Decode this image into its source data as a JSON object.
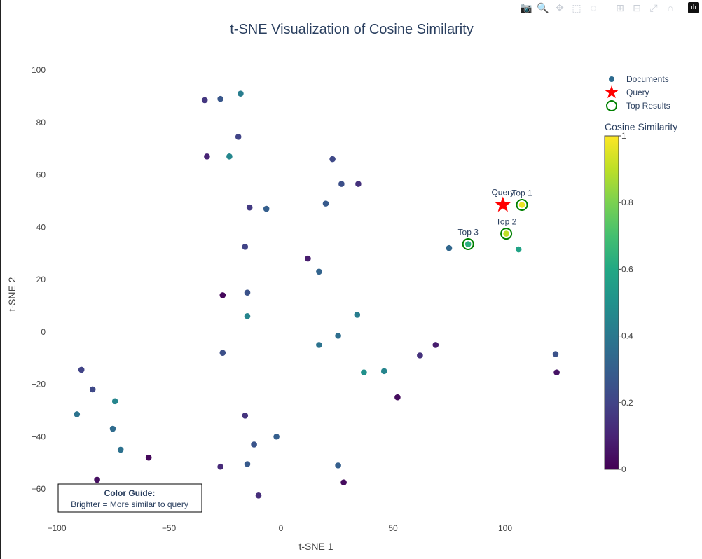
{
  "modebar": {
    "buttons": [
      {
        "name": "camera-icon",
        "glyph": "📷",
        "active": false
      },
      {
        "name": "zoom-icon",
        "glyph": "🔍",
        "active": true
      },
      {
        "name": "pan-icon",
        "glyph": "✥",
        "active": false
      },
      {
        "name": "box-select-icon",
        "glyph": "⬚",
        "active": false
      },
      {
        "name": "lasso-select-icon",
        "glyph": "◌",
        "active": false
      },
      {
        "name": "zoom-in-icon",
        "glyph": "⊞",
        "active": false
      },
      {
        "name": "zoom-out-icon",
        "glyph": "⊟",
        "active": false
      },
      {
        "name": "autoscale-icon",
        "glyph": "⤢",
        "active": false
      },
      {
        "name": "reset-axes-icon",
        "glyph": "⌂",
        "active": false
      }
    ]
  },
  "chart_data": {
    "type": "scatter",
    "title": "t-SNE Visualization of Cosine Similarity",
    "xlabel": "t-SNE 1",
    "ylabel": "t-SNE 2",
    "xlim": [
      -100,
      125
    ],
    "ylim": [
      -68,
      105
    ],
    "xticks": [
      -100,
      -50,
      0,
      50,
      100
    ],
    "xtick_labels": [
      "−100",
      "−50",
      "0",
      "50",
      "100"
    ],
    "yticks": [
      -60,
      -40,
      -20,
      0,
      20,
      40,
      60,
      80,
      100
    ],
    "ytick_labels": [
      "−60",
      "−40",
      "−20",
      "0",
      "20",
      "40",
      "60",
      "80",
      "100"
    ],
    "grid": false,
    "colorscale": "Viridis",
    "colorbar": {
      "title": "Cosine Similarity",
      "range": [
        0,
        1
      ],
      "ticks": [
        0,
        0.2,
        0.4,
        0.6,
        0.8,
        1
      ],
      "tick_labels": [
        "0",
        "0.2",
        "0.4",
        "0.6",
        "0.8",
        "1"
      ]
    },
    "legend": {
      "placement": "top-right",
      "entries": [
        "Documents",
        "Query",
        "Top Results"
      ]
    },
    "series": [
      {
        "name": "Documents",
        "marker": "circle",
        "points": [
          {
            "x": -34,
            "y": 88.5,
            "s": 0.16
          },
          {
            "x": -27,
            "y": 89,
            "s": 0.27
          },
          {
            "x": -18,
            "y": 91,
            "s": 0.42
          },
          {
            "x": -19,
            "y": 74.5,
            "s": 0.2
          },
          {
            "x": -33,
            "y": 67,
            "s": 0.1
          },
          {
            "x": -23,
            "y": 67,
            "s": 0.46
          },
          {
            "x": 23,
            "y": 66,
            "s": 0.22
          },
          {
            "x": 27,
            "y": 56.5,
            "s": 0.24
          },
          {
            "x": 34.5,
            "y": 56.5,
            "s": 0.14
          },
          {
            "x": -14,
            "y": 47.5,
            "s": 0.17
          },
          {
            "x": -6.5,
            "y": 47,
            "s": 0.3
          },
          {
            "x": 20,
            "y": 49,
            "s": 0.28
          },
          {
            "x": -16,
            "y": 32.5,
            "s": 0.2
          },
          {
            "x": 12,
            "y": 28,
            "s": 0.08
          },
          {
            "x": 17,
            "y": 23,
            "s": 0.32
          },
          {
            "x": -15,
            "y": 15,
            "s": 0.25
          },
          {
            "x": -26,
            "y": 14,
            "s": 0.02
          },
          {
            "x": -15,
            "y": 6,
            "s": 0.45
          },
          {
            "x": 34,
            "y": 6.5,
            "s": 0.42
          },
          {
            "x": 17,
            "y": -5,
            "s": 0.38
          },
          {
            "x": 25.5,
            "y": -1.5,
            "s": 0.36
          },
          {
            "x": -26,
            "y": -8,
            "s": 0.24
          },
          {
            "x": 69,
            "y": -5,
            "s": 0.08
          },
          {
            "x": 62,
            "y": -9,
            "s": 0.14
          },
          {
            "x": 37,
            "y": -15.5,
            "s": 0.5
          },
          {
            "x": 46,
            "y": -15,
            "s": 0.45
          },
          {
            "x": 122.5,
            "y": -8.5,
            "s": 0.25
          },
          {
            "x": 123,
            "y": -15.5,
            "s": 0.05
          },
          {
            "x": -89,
            "y": -14.5,
            "s": 0.2
          },
          {
            "x": -84,
            "y": -22,
            "s": 0.22
          },
          {
            "x": -74,
            "y": -26.5,
            "s": 0.45
          },
          {
            "x": -91,
            "y": -31.5,
            "s": 0.38
          },
          {
            "x": -75,
            "y": -37,
            "s": 0.35
          },
          {
            "x": -71.5,
            "y": -45,
            "s": 0.37
          },
          {
            "x": 52,
            "y": -25,
            "s": 0.03
          },
          {
            "x": -16,
            "y": -32,
            "s": 0.15
          },
          {
            "x": -12,
            "y": -43,
            "s": 0.26
          },
          {
            "x": -2,
            "y": -40,
            "s": 0.3
          },
          {
            "x": -59,
            "y": -48,
            "s": 0.02
          },
          {
            "x": -27,
            "y": -51.5,
            "s": 0.12
          },
          {
            "x": -15,
            "y": -50.5,
            "s": 0.28
          },
          {
            "x": 25.5,
            "y": -51,
            "s": 0.3
          },
          {
            "x": -82,
            "y": -56.5,
            "s": 0.04
          },
          {
            "x": 28,
            "y": -57.5,
            "s": 0.03
          },
          {
            "x": -10,
            "y": -62.5,
            "s": 0.13
          },
          {
            "x": 75,
            "y": 32,
            "s": 0.33
          },
          {
            "x": 106,
            "y": 31.5,
            "s": 0.58
          }
        ]
      },
      {
        "name": "Query",
        "marker": "star",
        "color": "#ff0000",
        "points": [
          {
            "x": 99,
            "y": 48.5,
            "label": "Query"
          }
        ]
      },
      {
        "name": "Top Results",
        "marker": "circle-open",
        "color": "#008000",
        "points": [
          {
            "x": 107.5,
            "y": 48.5,
            "s": 0.97,
            "label": "Top 1"
          },
          {
            "x": 100.5,
            "y": 37.5,
            "s": 0.9,
            "label": "Top 2"
          },
          {
            "x": 83.5,
            "y": 33.5,
            "s": 0.63,
            "label": "Top 3"
          }
        ]
      }
    ],
    "annotation": {
      "title": "Color Guide:",
      "text": "Brighter = More similar to query"
    }
  }
}
